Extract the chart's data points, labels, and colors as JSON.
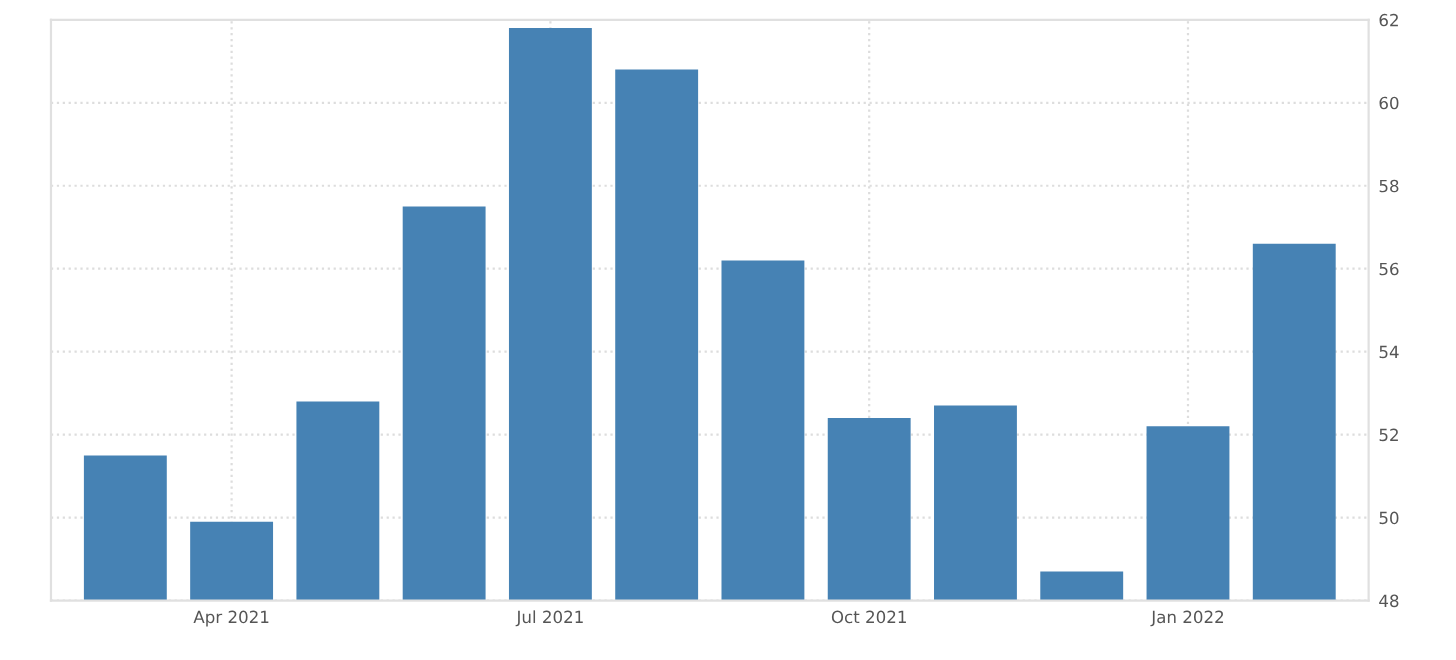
{
  "chart_data": {
    "type": "bar",
    "categories": [
      null,
      "Apr 2021",
      null,
      null,
      "Jul 2021",
      null,
      null,
      "Oct 2021",
      null,
      null,
      "Jan 2022",
      null
    ],
    "values": [
      51.5,
      49.9,
      52.8,
      57.5,
      61.8,
      60.8,
      56.2,
      52.4,
      52.7,
      48.7,
      52.2,
      56.6
    ],
    "color": "#4682b4",
    "ylim": [
      48,
      62
    ],
    "yticks": [
      48,
      50,
      52,
      54,
      56,
      58,
      60,
      62
    ],
    "grid": true
  }
}
